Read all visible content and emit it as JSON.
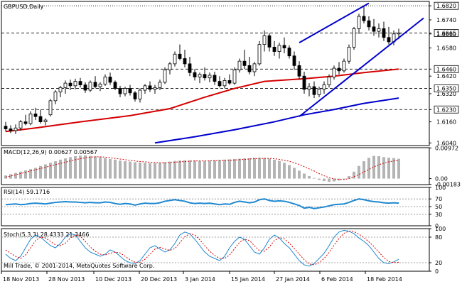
{
  "window": {
    "symbol_title": "GBPUSD,Daily",
    "watermark": "Mill Trade, © 2001-2014, MetaQuotes Software Corp."
  },
  "colors": {
    "background": "#ffffff",
    "frame": "#000000",
    "bull_body": "#ffffff",
    "bear_body": "#000000",
    "ma_fast": "#d40000",
    "ma_slow": "#0000cc",
    "channel": "#0000cc",
    "indicator_line": "#1e88d0",
    "signal_line": "#d40000",
    "macd_hist": "#b4b4b4",
    "level_line": "#000000",
    "axis_box_text": "#000000"
  },
  "chart_data": {
    "type": "candlestick",
    "title": "GBPUSD,Daily",
    "price_axis_labels": [
      "1.6820",
      "1.6740",
      "1.6665",
      "1.6660",
      "1.6580",
      "1.6460",
      "1.6420",
      "1.6350",
      "1.6320",
      "1.6230",
      "1.6160",
      "1.6040"
    ],
    "ylim": [
      1.6025,
      1.6845
    ],
    "x_labels": [
      "18 Nov 2013",
      "28 Nov 2013",
      "10 Dec 2013",
      "20 Dec 2013",
      "3 Jan 2014",
      "15 Jan 2014",
      "27 Jan 2014",
      "6 Feb 2014",
      "18 Feb 2014"
    ],
    "horizontal_levels": [
      {
        "value": 1.682,
        "label": "1.6820",
        "style": "dotted"
      },
      {
        "value": 1.6665,
        "label": "1.6665",
        "style": "dashed"
      },
      {
        "value": 1.646,
        "label": "1.6460",
        "style": "dashed"
      },
      {
        "value": 1.635,
        "label": "1.6350",
        "style": "dashed"
      },
      {
        "value": 1.623,
        "label": "1.6230",
        "style": "dashed"
      }
    ],
    "candles": [
      {
        "o": 1.6135,
        "h": 1.616,
        "l": 1.6105,
        "c": 1.612
      },
      {
        "o": 1.612,
        "h": 1.614,
        "l": 1.6095,
        "c": 1.611
      },
      {
        "o": 1.611,
        "h": 1.6145,
        "l": 1.609,
        "c": 1.6125
      },
      {
        "o": 1.6125,
        "h": 1.617,
        "l": 1.611,
        "c": 1.616
      },
      {
        "o": 1.616,
        "h": 1.62,
        "l": 1.614,
        "c": 1.615
      },
      {
        "o": 1.615,
        "h": 1.622,
        "l": 1.614,
        "c": 1.6205
      },
      {
        "o": 1.6205,
        "h": 1.624,
        "l": 1.617,
        "c": 1.619
      },
      {
        "o": 1.619,
        "h": 1.623,
        "l": 1.615,
        "c": 1.616
      },
      {
        "o": 1.616,
        "h": 1.618,
        "l": 1.614,
        "c": 1.617
      },
      {
        "o": 1.62,
        "h": 1.629,
        "l": 1.619,
        "c": 1.628
      },
      {
        "o": 1.628,
        "h": 1.634,
        "l": 1.626,
        "c": 1.633
      },
      {
        "o": 1.633,
        "h": 1.6365,
        "l": 1.63,
        "c": 1.6355
      },
      {
        "o": 1.6355,
        "h": 1.6395,
        "l": 1.632,
        "c": 1.638
      },
      {
        "o": 1.638,
        "h": 1.64,
        "l": 1.634,
        "c": 1.6365
      },
      {
        "o": 1.6365,
        "h": 1.6405,
        "l": 1.6345,
        "c": 1.639
      },
      {
        "o": 1.639,
        "h": 1.641,
        "l": 1.6355,
        "c": 1.637
      },
      {
        "o": 1.637,
        "h": 1.6385,
        "l": 1.6325,
        "c": 1.634
      },
      {
        "o": 1.634,
        "h": 1.6395,
        "l": 1.633,
        "c": 1.6385
      },
      {
        "o": 1.6385,
        "h": 1.642,
        "l": 1.635,
        "c": 1.636
      },
      {
        "o": 1.636,
        "h": 1.6385,
        "l": 1.6335,
        "c": 1.6375
      },
      {
        "o": 1.6375,
        "h": 1.643,
        "l": 1.6365,
        "c": 1.6415
      },
      {
        "o": 1.6415,
        "h": 1.644,
        "l": 1.637,
        "c": 1.6385
      },
      {
        "o": 1.6385,
        "h": 1.6395,
        "l": 1.634,
        "c": 1.635
      },
      {
        "o": 1.635,
        "h": 1.6365,
        "l": 1.63,
        "c": 1.632
      },
      {
        "o": 1.632,
        "h": 1.636,
        "l": 1.6305,
        "c": 1.635
      },
      {
        "o": 1.635,
        "h": 1.637,
        "l": 1.631,
        "c": 1.6325
      },
      {
        "o": 1.6325,
        "h": 1.6335,
        "l": 1.6275,
        "c": 1.629
      },
      {
        "o": 1.629,
        "h": 1.635,
        "l": 1.627,
        "c": 1.634
      },
      {
        "o": 1.634,
        "h": 1.6375,
        "l": 1.632,
        "c": 1.6365
      },
      {
        "o": 1.6365,
        "h": 1.639,
        "l": 1.633,
        "c": 1.6345
      },
      {
        "o": 1.6345,
        "h": 1.637,
        "l": 1.632,
        "c": 1.6355
      },
      {
        "o": 1.6355,
        "h": 1.64,
        "l": 1.634,
        "c": 1.6385
      },
      {
        "o": 1.6385,
        "h": 1.647,
        "l": 1.6375,
        "c": 1.6455
      },
      {
        "o": 1.6455,
        "h": 1.65,
        "l": 1.643,
        "c": 1.649
      },
      {
        "o": 1.649,
        "h": 1.656,
        "l": 1.6475,
        "c": 1.6545
      },
      {
        "o": 1.6545,
        "h": 1.66,
        "l": 1.651,
        "c": 1.652
      },
      {
        "o": 1.652,
        "h": 1.657,
        "l": 1.647,
        "c": 1.649
      },
      {
        "o": 1.649,
        "h": 1.653,
        "l": 1.642,
        "c": 1.644
      },
      {
        "o": 1.644,
        "h": 1.646,
        "l": 1.6395,
        "c": 1.6415
      },
      {
        "o": 1.6415,
        "h": 1.644,
        "l": 1.638,
        "c": 1.643
      },
      {
        "o": 1.643,
        "h": 1.647,
        "l": 1.6395,
        "c": 1.641
      },
      {
        "o": 1.641,
        "h": 1.644,
        "l": 1.6385,
        "c": 1.6425
      },
      {
        "o": 1.6425,
        "h": 1.6445,
        "l": 1.637,
        "c": 1.639
      },
      {
        "o": 1.639,
        "h": 1.642,
        "l": 1.6355,
        "c": 1.6365
      },
      {
        "o": 1.6365,
        "h": 1.641,
        "l": 1.635,
        "c": 1.6395
      },
      {
        "o": 1.6395,
        "h": 1.643,
        "l": 1.637,
        "c": 1.638
      },
      {
        "o": 1.638,
        "h": 1.647,
        "l": 1.637,
        "c": 1.6455
      },
      {
        "o": 1.6455,
        "h": 1.652,
        "l": 1.644,
        "c": 1.6505
      },
      {
        "o": 1.6505,
        "h": 1.657,
        "l": 1.646,
        "c": 1.648
      },
      {
        "o": 1.648,
        "h": 1.653,
        "l": 1.643,
        "c": 1.6445
      },
      {
        "o": 1.6445,
        "h": 1.65,
        "l": 1.642,
        "c": 1.649
      },
      {
        "o": 1.649,
        "h": 1.662,
        "l": 1.648,
        "c": 1.66
      },
      {
        "o": 1.66,
        "h": 1.668,
        "l": 1.656,
        "c": 1.665
      },
      {
        "o": 1.665,
        "h": 1.6665,
        "l": 1.656,
        "c": 1.6585
      },
      {
        "o": 1.6585,
        "h": 1.662,
        "l": 1.6535,
        "c": 1.656
      },
      {
        "o": 1.656,
        "h": 1.661,
        "l": 1.652,
        "c": 1.6595
      },
      {
        "o": 1.6595,
        "h": 1.664,
        "l": 1.655,
        "c": 1.658
      },
      {
        "o": 1.658,
        "h": 1.6595,
        "l": 1.652,
        "c": 1.6535
      },
      {
        "o": 1.6535,
        "h": 1.656,
        "l": 1.6455,
        "c": 1.648
      },
      {
        "o": 1.648,
        "h": 1.6505,
        "l": 1.64,
        "c": 1.642
      },
      {
        "o": 1.642,
        "h": 1.6445,
        "l": 1.632,
        "c": 1.6345
      },
      {
        "o": 1.6345,
        "h": 1.638,
        "l": 1.6305,
        "c": 1.636
      },
      {
        "o": 1.636,
        "h": 1.639,
        "l": 1.6295,
        "c": 1.6315
      },
      {
        "o": 1.6315,
        "h": 1.636,
        "l": 1.63,
        "c": 1.6345
      },
      {
        "o": 1.6345,
        "h": 1.639,
        "l": 1.632,
        "c": 1.637
      },
      {
        "o": 1.637,
        "h": 1.643,
        "l": 1.6355,
        "c": 1.6415
      },
      {
        "o": 1.6415,
        "h": 1.648,
        "l": 1.64,
        "c": 1.6465
      },
      {
        "o": 1.6465,
        "h": 1.65,
        "l": 1.643,
        "c": 1.645
      },
      {
        "o": 1.645,
        "h": 1.652,
        "l": 1.644,
        "c": 1.6505
      },
      {
        "o": 1.6505,
        "h": 1.66,
        "l": 1.649,
        "c": 1.6585
      },
      {
        "o": 1.6585,
        "h": 1.67,
        "l": 1.657,
        "c": 1.669
      },
      {
        "o": 1.669,
        "h": 1.6775,
        "l": 1.666,
        "c": 1.676
      },
      {
        "o": 1.676,
        "h": 1.6823,
        "l": 1.672,
        "c": 1.6735
      },
      {
        "o": 1.6735,
        "h": 1.676,
        "l": 1.668,
        "c": 1.67
      },
      {
        "o": 1.67,
        "h": 1.6745,
        "l": 1.665,
        "c": 1.6675
      },
      {
        "o": 1.6675,
        "h": 1.672,
        "l": 1.664,
        "c": 1.669
      },
      {
        "o": 1.669,
        "h": 1.673,
        "l": 1.662,
        "c": 1.664
      },
      {
        "o": 1.664,
        "h": 1.67,
        "l": 1.66,
        "c": 1.6615
      },
      {
        "o": 1.6615,
        "h": 1.668,
        "l": 1.6595,
        "c": 1.666
      },
      {
        "o": 1.666,
        "h": 1.669,
        "l": 1.663,
        "c": 1.6665
      }
    ],
    "ma_fast_points": [
      [
        0,
        1.6105
      ],
      [
        6,
        1.6125
      ],
      [
        15,
        1.616
      ],
      [
        25,
        1.6195
      ],
      [
        33,
        1.6235
      ],
      [
        40,
        1.63
      ],
      [
        46,
        1.635
      ],
      [
        52,
        1.639
      ],
      [
        60,
        1.6405
      ],
      [
        66,
        1.642
      ],
      [
        72,
        1.644
      ],
      [
        79,
        1.646
      ]
    ],
    "ma_slow_points": [
      [
        30,
        1.604
      ],
      [
        38,
        1.6075
      ],
      [
        46,
        1.6115
      ],
      [
        54,
        1.616
      ],
      [
        60,
        1.62
      ],
      [
        66,
        1.623
      ],
      [
        72,
        1.6265
      ],
      [
        79,
        1.6295
      ]
    ],
    "trend_lines": [
      {
        "from": [
          59,
          1.661
        ],
        "to": [
          73,
          1.6835
        ]
      },
      {
        "from": [
          59,
          1.619
        ],
        "to": [
          84,
          1.675
        ]
      }
    ],
    "macd": {
      "label": "MACD(12,26,9) 0.00627 0.00567",
      "axis_labels": [
        "0.00972",
        "0.00",
        "-0.00183"
      ],
      "ylim": [
        -0.0019,
        0.0098
      ],
      "histogram": [
        0.001,
        0.0014,
        0.0018,
        0.0022,
        0.0026,
        0.003,
        0.0034,
        0.004,
        0.0045,
        0.005,
        0.0055,
        0.006,
        0.0064,
        0.0068,
        0.0071,
        0.0073,
        0.0074,
        0.0072,
        0.007,
        0.0068,
        0.0065,
        0.0062,
        0.006,
        0.0057,
        0.0055,
        0.0054,
        0.0052,
        0.0051,
        0.005,
        0.0049,
        0.0049,
        0.005,
        0.0052,
        0.0054,
        0.0056,
        0.0057,
        0.0058,
        0.0058,
        0.0057,
        0.0056,
        0.0056,
        0.0057,
        0.0058,
        0.0059,
        0.006,
        0.0061,
        0.0062,
        0.0063,
        0.0064,
        0.0065,
        0.0066,
        0.0066,
        0.0065,
        0.0063,
        0.006,
        0.0056,
        0.005,
        0.0043,
        0.0034,
        0.0025,
        0.0016,
        0.0008,
        0.0002,
        -0.0004,
        -0.0008,
        -0.001,
        -0.0009,
        -0.0006,
        -0.0002,
        0.0008,
        0.0022,
        0.004,
        0.0055,
        0.0066,
        0.0072,
        0.0071,
        0.0068,
        0.0066,
        0.0065,
        0.0063
      ],
      "signal": [
        0.0005,
        0.0008,
        0.0012,
        0.0016,
        0.002,
        0.0024,
        0.0028,
        0.0032,
        0.0036,
        0.004,
        0.0044,
        0.0048,
        0.0052,
        0.0056,
        0.006,
        0.0063,
        0.0066,
        0.0068,
        0.0069,
        0.0069,
        0.0068,
        0.0066,
        0.0064,
        0.0062,
        0.006,
        0.0058,
        0.0056,
        0.0054,
        0.0053,
        0.0052,
        0.0051,
        0.005,
        0.005,
        0.0051,
        0.0052,
        0.0053,
        0.0054,
        0.0055,
        0.0056,
        0.0056,
        0.0056,
        0.0056,
        0.0057,
        0.0057,
        0.0058,
        0.0058,
        0.0059,
        0.006,
        0.0061,
        0.0062,
        0.0063,
        0.0064,
        0.0064,
        0.0064,
        0.0063,
        0.0061,
        0.0058,
        0.0055,
        0.005,
        0.0045,
        0.0038,
        0.0031,
        0.0024,
        0.0016,
        0.0009,
        0.0003,
        -0.0001,
        -0.0003,
        -0.0003,
        0.0,
        0.0006,
        0.0013,
        0.0021,
        0.0029,
        0.0037,
        0.0044,
        0.0049,
        0.0053,
        0.0056,
        0.0057
      ]
    },
    "rsi": {
      "label": "RSI(14) 59.1716",
      "axis_labels": [
        "100",
        "70",
        "50",
        "30",
        "0"
      ],
      "ylim": [
        0,
        100
      ],
      "levels": [
        70,
        50,
        30
      ],
      "values": [
        55,
        56,
        57,
        55,
        56,
        58,
        59,
        58,
        57,
        59,
        61,
        62,
        63,
        62,
        62,
        61,
        60,
        61,
        60,
        60,
        62,
        61,
        58,
        56,
        58,
        57,
        54,
        57,
        59,
        58,
        58,
        60,
        64,
        66,
        68,
        66,
        64,
        60,
        58,
        59,
        58,
        59,
        57,
        55,
        57,
        56,
        61,
        64,
        62,
        60,
        62,
        68,
        70,
        66,
        64,
        65,
        64,
        61,
        57,
        53,
        46,
        48,
        45,
        47,
        49,
        52,
        55,
        56,
        57,
        61,
        66,
        70,
        68,
        65,
        63,
        62,
        60,
        59,
        60,
        59
      ]
    },
    "stochastic": {
      "label": "Stoch(5,3,3) 28.4333 21.3466",
      "axis_labels": [
        "100",
        "80",
        "20",
        "0"
      ],
      "ylim": [
        0,
        100
      ],
      "levels": [
        80,
        20
      ],
      "k": [
        40,
        30,
        25,
        35,
        55,
        75,
        85,
        80,
        70,
        60,
        55,
        65,
        80,
        88,
        85,
        70,
        55,
        45,
        40,
        35,
        40,
        50,
        45,
        35,
        25,
        20,
        18,
        25,
        40,
        55,
        60,
        52,
        45,
        50,
        65,
        85,
        92,
        88,
        75,
        60,
        45,
        35,
        30,
        25,
        35,
        55,
        70,
        80,
        75,
        60,
        45,
        40,
        55,
        75,
        85,
        78,
        65,
        55,
        40,
        25,
        15,
        12,
        18,
        30,
        42,
        60,
        80,
        92,
        96,
        94,
        88,
        78,
        70,
        60,
        45,
        30,
        20,
        18,
        22,
        28
      ],
      "d": [
        50,
        42,
        35,
        30,
        38,
        55,
        72,
        80,
        78,
        70,
        62,
        60,
        66,
        78,
        85,
        82,
        70,
        57,
        47,
        40,
        38,
        42,
        45,
        43,
        35,
        27,
        21,
        21,
        28,
        40,
        52,
        56,
        52,
        49,
        53,
        67,
        81,
        88,
        85,
        74,
        60,
        47,
        37,
        30,
        30,
        38,
        53,
        68,
        75,
        72,
        60,
        48,
        47,
        57,
        72,
        79,
        76,
        66,
        53,
        40,
        27,
        17,
        15,
        20,
        30,
        44,
        61,
        77,
        89,
        94,
        93,
        87,
        79,
        69,
        58,
        45,
        32,
        23,
        20,
        21
      ]
    }
  }
}
